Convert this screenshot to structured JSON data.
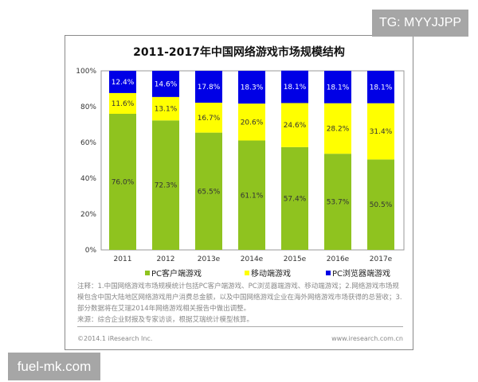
{
  "watermarks": {
    "top_right": "TG: MYYJJPP",
    "bottom_left": "fuel-mk.com"
  },
  "chart_data": {
    "type": "bar",
    "stacked": true,
    "title": "2011-2017年中国网络游戏市场规模结构",
    "categories": [
      "2011",
      "2012",
      "2013e",
      "2014e",
      "2015e",
      "2016e",
      "2017e"
    ],
    "ylim": [
      0,
      100
    ],
    "yticks": [
      "0%",
      "20%",
      "40%",
      "60%",
      "80%",
      "100%"
    ],
    "ytick_values": [
      0,
      20,
      40,
      60,
      80,
      100
    ],
    "legend_position": "bottom",
    "series": [
      {
        "name": "PC客户端游戏",
        "color": "#8fc31f",
        "values": [
          76.0,
          72.3,
          65.5,
          61.1,
          57.4,
          53.7,
          50.5
        ],
        "labels": [
          "76.0%",
          "72.3%",
          "65.5%",
          "61.1%",
          "57.4%",
          "53.7%",
          "50.5%"
        ]
      },
      {
        "name": "移动端游戏",
        "color": "#ffff00",
        "values": [
          11.6,
          13.1,
          16.7,
          20.6,
          24.6,
          28.2,
          31.4
        ],
        "labels": [
          "11.6%",
          "13.1%",
          "16.7%",
          "20.6%",
          "24.6%",
          "28.2%",
          "31.4%"
        ]
      },
      {
        "name": "PC浏览器端游戏",
        "color": "#0000e6",
        "values": [
          12.4,
          14.6,
          17.8,
          18.3,
          18.1,
          18.1,
          18.1
        ],
        "labels": [
          "12.4%",
          "14.6%",
          "17.8%",
          "18.3%",
          "18.1%",
          "18.1%",
          "18.1%"
        ]
      }
    ]
  },
  "notes": [
    "注释：1.中国网络游戏市场规模统计包括PC客户端游戏、PC浏览器端游戏、移动端游戏；2.网络游戏市场规模包含中国大陆地区网络游戏用户消费总金额，以及中国网络游戏企业在海外网络游戏市场获得的总营收；3.部分数据将在艾瑞2014年网络游戏相关报告中做出调整。",
    "来源：综合企业财报及专家访谈，根据艾瑞统计模型核算。"
  ],
  "footer": {
    "copyright": "©2014.1 iResearch Inc.",
    "website": "www.iresearch.com.cn"
  }
}
